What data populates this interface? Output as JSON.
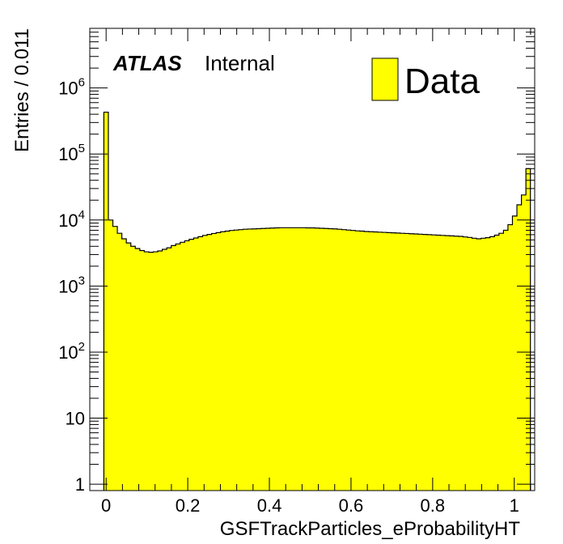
{
  "chart_data": {
    "type": "bar",
    "style": "histogram",
    "title": "",
    "xlabel": "GSFTrackParticles_eProbabilityHT",
    "ylabel": "Entries / 0.011",
    "xlim": [
      -0.04,
      1.05
    ],
    "ylim": [
      0.8,
      8000000
    ],
    "yscale": "log",
    "grid": false,
    "legend_position": "top-right",
    "colors": {
      "fill": "#ffff00",
      "line": "#000000",
      "background": "#ffffff"
    },
    "experiment_label": {
      "bold": "ATLAS",
      "regular": "Internal"
    },
    "series": [
      {
        "name": "Data",
        "bin_width": 0.011,
        "first_bin_low": -0.0055,
        "values": [
          430000,
          10000,
          8000,
          6300,
          5200,
          4500,
          4000,
          3700,
          3450,
          3300,
          3250,
          3300,
          3400,
          3600,
          3800,
          4100,
          4350,
          4600,
          4850,
          5100,
          5350,
          5600,
          5850,
          6050,
          6250,
          6450,
          6650,
          6800,
          6950,
          7050,
          7150,
          7250,
          7300,
          7350,
          7400,
          7450,
          7500,
          7550,
          7600,
          7650,
          7650,
          7650,
          7650,
          7650,
          7650,
          7600,
          7600,
          7550,
          7500,
          7450,
          7400,
          7350,
          7250,
          7150,
          7050,
          6950,
          6850,
          6800,
          6700,
          6650,
          6600,
          6550,
          6500,
          6450,
          6400,
          6350,
          6300,
          6250,
          6200,
          6150,
          6100,
          6050,
          6000,
          5950,
          5900,
          5850,
          5800,
          5750,
          5700,
          5650,
          5550,
          5450,
          5300,
          5200,
          5300,
          5400,
          5600,
          5900,
          6300,
          7000,
          8500,
          11500,
          17000,
          24000,
          60000
        ]
      }
    ],
    "x_ticks": [
      {
        "value": 0,
        "label": "0"
      },
      {
        "value": 0.2,
        "label": "0.2"
      },
      {
        "value": 0.4,
        "label": "0.4"
      },
      {
        "value": 0.6,
        "label": "0.6"
      },
      {
        "value": 0.8,
        "label": "0.8"
      },
      {
        "value": 1,
        "label": "1"
      }
    ],
    "y_ticks": [
      {
        "value": 1,
        "base": "1",
        "exp": ""
      },
      {
        "value": 10,
        "base": "10",
        "exp": ""
      },
      {
        "value": 100,
        "base": "10",
        "exp": "2"
      },
      {
        "value": 1000,
        "base": "10",
        "exp": "3"
      },
      {
        "value": 10000,
        "base": "10",
        "exp": "4"
      },
      {
        "value": 100000,
        "base": "10",
        "exp": "5"
      },
      {
        "value": 1000000,
        "base": "10",
        "exp": "6"
      }
    ]
  }
}
